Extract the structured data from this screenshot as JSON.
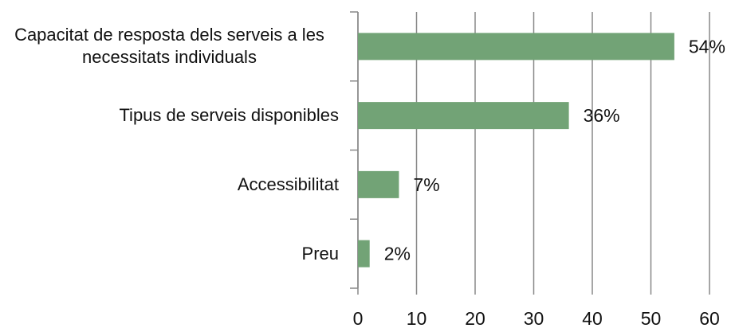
{
  "chart_data": {
    "type": "bar",
    "orientation": "horizontal",
    "categories": [
      "Capacitat de resposta dels serveis a les necessitats individuals",
      "Tipus de serveis disponibles",
      "Accessibilitat",
      "Preu"
    ],
    "values": [
      54,
      36,
      7,
      2
    ],
    "value_labels": [
      "54%",
      "36%",
      "7%",
      "2%"
    ],
    "color": "#72a376",
    "xlim": [
      0,
      60
    ],
    "xticks": [
      0,
      10,
      20,
      30,
      40,
      50,
      60
    ],
    "grid": true
  }
}
